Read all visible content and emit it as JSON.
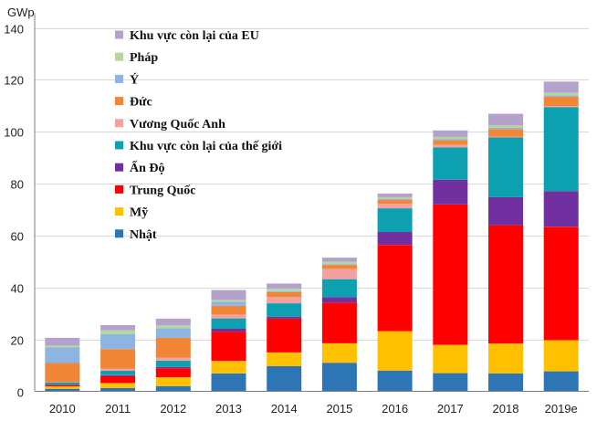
{
  "chart_data": {
    "type": "bar",
    "stacked": true,
    "unit_label": "GWp",
    "categories": [
      "2010",
      "2011",
      "2012",
      "2013",
      "2014",
      "2015",
      "2016",
      "2017",
      "2018",
      "2019e"
    ],
    "ylim": [
      0,
      140
    ],
    "yticks": [
      0,
      20,
      40,
      60,
      80,
      100,
      120,
      140
    ],
    "grid": "horizontal",
    "legend_position": "top-left",
    "series": [
      {
        "name": "Nhật",
        "color": "#2E75B6",
        "values": [
          1.0,
          1.3,
          2.0,
          6.9,
          9.7,
          11.0,
          8.0,
          7.0,
          6.9,
          7.7
        ]
      },
      {
        "name": "Mỹ",
        "color": "#FFC000",
        "values": [
          0.9,
          1.9,
          3.4,
          4.8,
          5.3,
          7.5,
          15.2,
          10.9,
          11.5,
          12.0
        ]
      },
      {
        "name": "Trung  Quốc",
        "color": "#FF0000",
        "values": [
          0.5,
          2.7,
          3.5,
          11.3,
          13.0,
          15.7,
          33.2,
          54.1,
          45.6,
          43.7
        ]
      },
      {
        "name": "Ấn Độ",
        "color": "#7030A0",
        "values": [
          0.2,
          0.3,
          0.5,
          1.1,
          0.7,
          2.1,
          5.0,
          9.5,
          10.8,
          13.7
        ]
      },
      {
        "name": "Khu vực còn lại của thế giới",
        "color": "#0CA0B0",
        "values": [
          0.8,
          1.7,
          2.4,
          4.0,
          5.2,
          6.9,
          9.1,
          12.5,
          23.0,
          32.4
        ]
      },
      {
        "name": "Vương Quốc Anh",
        "color": "#F4A0A0",
        "values": [
          0.1,
          0.9,
          1.2,
          1.5,
          2.4,
          4.0,
          1.8,
          0.9,
          0.3,
          0.3
        ]
      },
      {
        "name": "Đức",
        "color": "#F28637",
        "values": [
          7.4,
          7.5,
          7.6,
          3.3,
          1.9,
          1.5,
          1.5,
          1.8,
          2.9,
          3.7
        ]
      },
      {
        "name": "Ý",
        "color": "#8DB4E2",
        "values": [
          6.0,
          5.7,
          3.7,
          1.6,
          0.4,
          0.3,
          0.4,
          0.4,
          0.5,
          0.5
        ]
      },
      {
        "name": "Pháp",
        "color": "#B5D69F",
        "values": [
          0.7,
          1.5,
          1.1,
          0.7,
          0.9,
          0.9,
          0.6,
          0.9,
          0.9,
          1.0
        ]
      },
      {
        "name": "Khu vực còn lại của EU",
        "color": "#B4A2CC",
        "values": [
          3.0,
          2.0,
          2.6,
          3.8,
          2.0,
          1.6,
          1.4,
          2.5,
          4.5,
          4.3
        ]
      }
    ]
  }
}
